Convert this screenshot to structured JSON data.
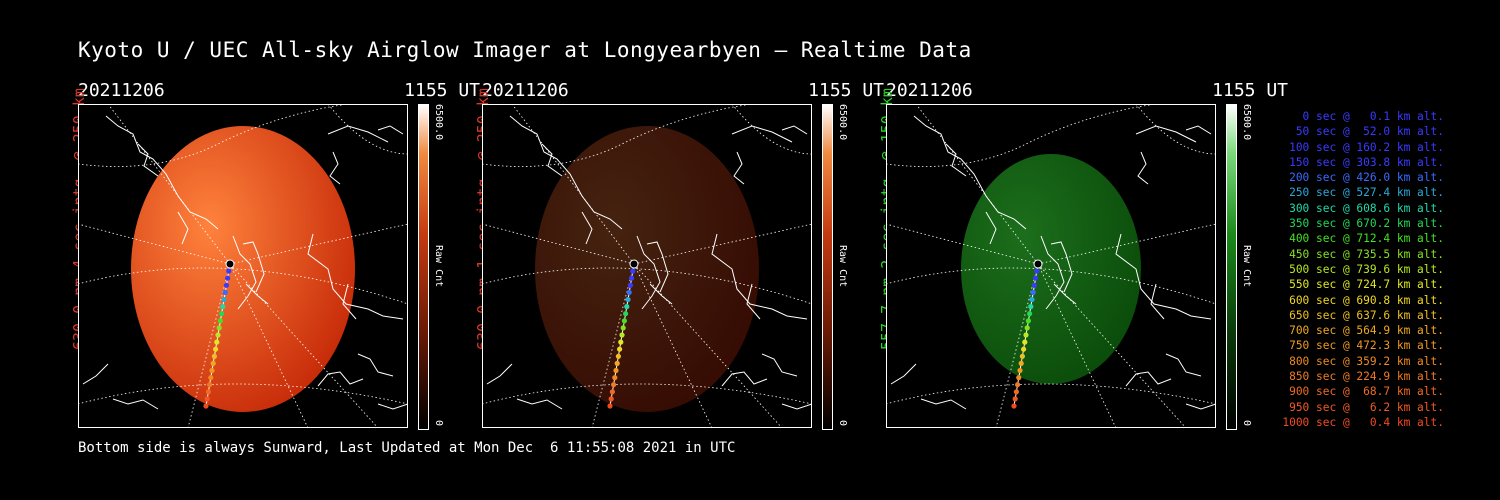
{
  "title": "Kyoto U / UEC All-sky Airglow Imager at Longyearbyen — Realtime Data",
  "colors": {
    "red_panel": "#e8431c",
    "green_panel": "#1f9a1f",
    "red_text": "#d8382a",
    "green_text": "#2ad22a"
  },
  "panels": [
    {
      "date": "20211206",
      "time": "1155 UT",
      "side_label": "630.0 nm 4 sec intg. @ 250 km",
      "cbar_max": "6500.0",
      "cbar_min": "0",
      "cbar_unit": "Raw Cnt",
      "color_type": "red",
      "label_color": "#d8382a",
      "brightness": 1.0
    },
    {
      "date": "20211206",
      "time": "1155 UT",
      "side_label": "630.0 nm 1 sec intg. @ 250 km",
      "cbar_max": "6500.0",
      "cbar_min": "0",
      "cbar_unit": "Raw Cnt",
      "color_type": "red",
      "label_color": "#d8382a",
      "brightness": 0.27
    },
    {
      "date": "20211206",
      "time": "1155 UT",
      "side_label": "557.7 nm 2 sec intg. @ 150 km",
      "cbar_max": "6500.0",
      "cbar_min": "0",
      "cbar_unit": "Raw Cnt",
      "color_type": "green",
      "label_color": "#2ad22a",
      "brightness": 0.55
    }
  ],
  "legend": [
    {
      "text": "0 sec @   0.1 km alt.",
      "color": "#3a3aff"
    },
    {
      "text": "50 sec @  52.0 km alt.",
      "color": "#3a3aff"
    },
    {
      "text": "100 sec @ 160.2 km alt.",
      "color": "#3a3aff"
    },
    {
      "text": "150 sec @ 303.8 km alt.",
      "color": "#3a3aff"
    },
    {
      "text": "200 sec @ 426.0 km alt.",
      "color": "#3a6aff"
    },
    {
      "text": "250 sec @ 527.4 km alt.",
      "color": "#2aa8d8"
    },
    {
      "text": "300 sec @ 608.6 km alt.",
      "color": "#22d8a8"
    },
    {
      "text": "350 sec @ 670.2 km alt.",
      "color": "#22d855"
    },
    {
      "text": "400 sec @ 712.4 km alt.",
      "color": "#44e022"
    },
    {
      "text": "450 sec @ 735.5 km alt.",
      "color": "#88e022"
    },
    {
      "text": "500 sec @ 739.6 km alt.",
      "color": "#b8e822"
    },
    {
      "text": "550 sec @ 724.7 km alt.",
      "color": "#e0e822"
    },
    {
      "text": "600 sec @ 690.8 km alt.",
      "color": "#f0d822"
    },
    {
      "text": "650 sec @ 637.6 km alt.",
      "color": "#f0c022"
    },
    {
      "text": "700 sec @ 564.9 km alt.",
      "color": "#f0a822"
    },
    {
      "text": "750 sec @ 472.3 km alt.",
      "color": "#f09822"
    },
    {
      "text": "800 sec @ 359.2 km alt.",
      "color": "#f08a22"
    },
    {
      "text": "850 sec @ 224.9 km alt.",
      "color": "#f07a22"
    },
    {
      "text": "900 sec @  68.7 km alt.",
      "color": "#f06a22"
    },
    {
      "text": "950 sec @   6.2 km alt.",
      "color": "#f05a22"
    },
    {
      "text": "1000 sec @   0.4 km alt.",
      "color": "#f04a22"
    }
  ],
  "footer": "Bottom side is always Sunward, Last Updated at Mon Dec  6 11:55:08 2021 in UTC"
}
